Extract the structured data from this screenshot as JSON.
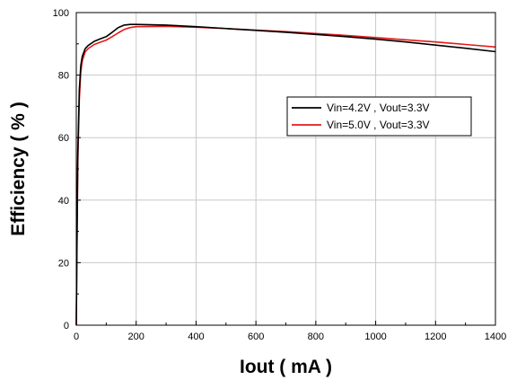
{
  "chart_data": {
    "type": "line",
    "title": "",
    "xlabel": "Iout ( mA )",
    "ylabel": "Efficiency ( % )",
    "xlim": [
      0,
      1400
    ],
    "ylim": [
      0,
      100
    ],
    "xticks": [
      0,
      200,
      400,
      600,
      800,
      1000,
      1200,
      1400
    ],
    "yticks": [
      0,
      20,
      40,
      60,
      80,
      100
    ],
    "grid": true,
    "legend_position": "center-right",
    "series": [
      {
        "name": "Vin=4.2V , Vout=3.3V",
        "color": "#000000",
        "x": [
          0,
          2,
          5,
          10,
          15,
          20,
          30,
          40,
          60,
          80,
          100,
          120,
          140,
          160,
          180,
          200,
          300,
          400,
          500,
          600,
          700,
          800,
          900,
          1000,
          1100,
          1200,
          1300,
          1400
        ],
        "y": [
          0,
          25,
          55,
          75,
          83,
          86,
          88.5,
          89.5,
          90.8,
          91.6,
          92.3,
          93.7,
          95.2,
          96.0,
          96.2,
          96.2,
          96.0,
          95.5,
          94.9,
          94.3,
          93.7,
          93.0,
          92.3,
          91.5,
          90.6,
          89.6,
          88.6,
          87.5
        ]
      },
      {
        "name": "Vin=5.0V , Vout=3.3V",
        "color": "#e41a1a",
        "x": [
          0,
          2,
          5,
          10,
          15,
          20,
          30,
          40,
          60,
          80,
          100,
          120,
          140,
          160,
          180,
          200,
          300,
          400,
          500,
          600,
          700,
          800,
          900,
          1000,
          1100,
          1200,
          1300,
          1400
        ],
        "y": [
          0,
          22,
          52,
          72,
          81,
          84.5,
          87.5,
          88.5,
          89.8,
          90.5,
          91.2,
          92.3,
          93.5,
          94.6,
          95.2,
          95.5,
          95.6,
          95.3,
          94.9,
          94.4,
          93.9,
          93.3,
          92.7,
          92.0,
          91.3,
          90.6,
          89.8,
          89.0
        ]
      }
    ]
  }
}
